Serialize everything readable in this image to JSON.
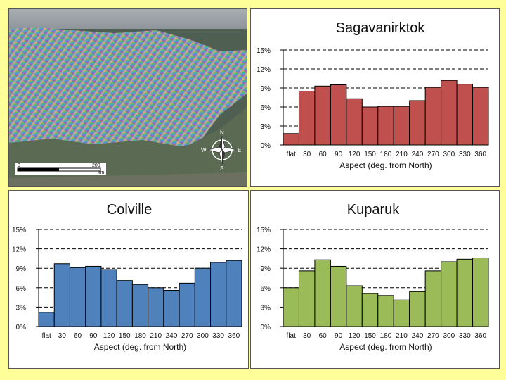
{
  "map": {
    "scale_start": "0",
    "scale_end": "200",
    "scale_unit": "km",
    "compass": {
      "n": "N",
      "e": "E",
      "s": "S",
      "w": "W"
    }
  },
  "chart_data": [
    {
      "id": "sagavanirktok",
      "type": "bar",
      "title": "Sagavanirktok",
      "xlabel": "Aspect (deg. from North)",
      "ylabel": "",
      "ylim": [
        0,
        15
      ],
      "yticks": [
        "0%",
        "3%",
        "6%",
        "9%",
        "12%",
        "15%"
      ],
      "categories": [
        "flat",
        "30",
        "60",
        "90",
        "120",
        "150",
        "180",
        "210",
        "240",
        "270",
        "300",
        "330",
        "360"
      ],
      "values": [
        1.8,
        8.5,
        9.3,
        9.5,
        7.3,
        6.0,
        6.1,
        6.1,
        7.0,
        9.1,
        10.2,
        9.6,
        9.1
      ],
      "color": "#c0504d"
    },
    {
      "id": "colville",
      "type": "bar",
      "title": "Colville",
      "xlabel": "Aspect (deg. from North)",
      "ylabel": "",
      "ylim": [
        0,
        15
      ],
      "yticks": [
        "0%",
        "3%",
        "6%",
        "9%",
        "12%",
        "15%"
      ],
      "categories": [
        "flat",
        "30",
        "60",
        "90",
        "120",
        "150",
        "180",
        "210",
        "240",
        "270",
        "300",
        "330",
        "360"
      ],
      "values": [
        2.2,
        9.7,
        9.1,
        9.3,
        8.8,
        7.1,
        6.5,
        6.0,
        5.6,
        6.7,
        9.0,
        9.9,
        10.2
      ],
      "color": "#4f81bd"
    },
    {
      "id": "kuparuk",
      "type": "bar",
      "title": "Kuparuk",
      "xlabel": "Aspect (deg. from North)",
      "ylabel": "",
      "ylim": [
        0,
        15
      ],
      "yticks": [
        "0%",
        "3%",
        "6%",
        "9%",
        "12%",
        "15%"
      ],
      "categories": [
        "flat",
        "30",
        "60",
        "90",
        "120",
        "150",
        "180",
        "210",
        "240",
        "270",
        "300",
        "330",
        "360"
      ],
      "values": [
        6.0,
        8.6,
        10.3,
        9.3,
        6.3,
        5.1,
        4.8,
        4.1,
        5.4,
        8.6,
        10.0,
        10.4,
        10.6
      ],
      "color": "#9bbb59"
    }
  ]
}
